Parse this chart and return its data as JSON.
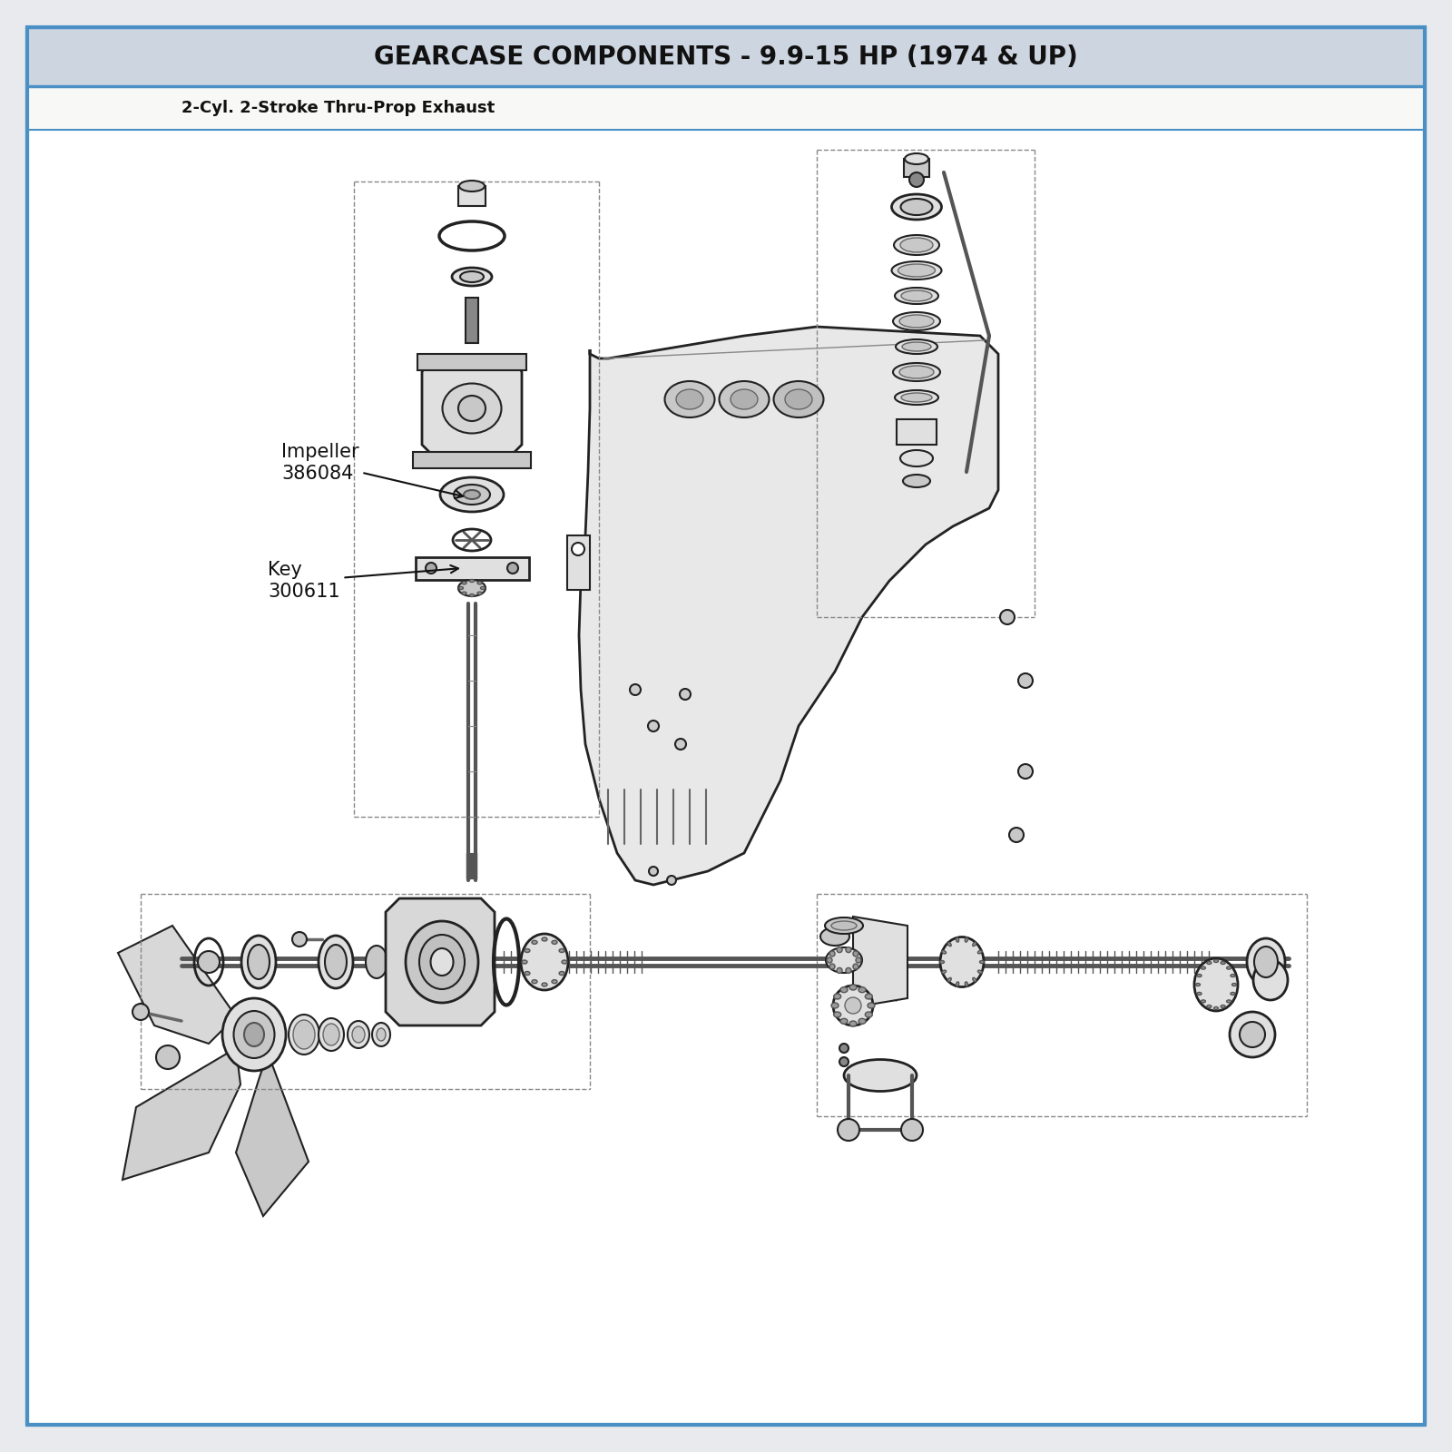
{
  "title": "GEARCASE COMPONENTS - 9.9-15 HP (1974 & UP)",
  "subtitle": "2-Cyl. 2-Stroke Thru-Prop Exhaust",
  "title_bg": "#cdd5e0",
  "subtitle_bg": "#ffffff",
  "body_bg": "#ffffff",
  "outer_bg": "#e8eaee",
  "border_color": "#4a90c4",
  "title_fontsize": 20,
  "subtitle_fontsize": 13,
  "label_fontsize": 14,
  "line_color": "#222222",
  "part_fill": "#e0e0e0",
  "part_fill2": "#c8c8c8"
}
